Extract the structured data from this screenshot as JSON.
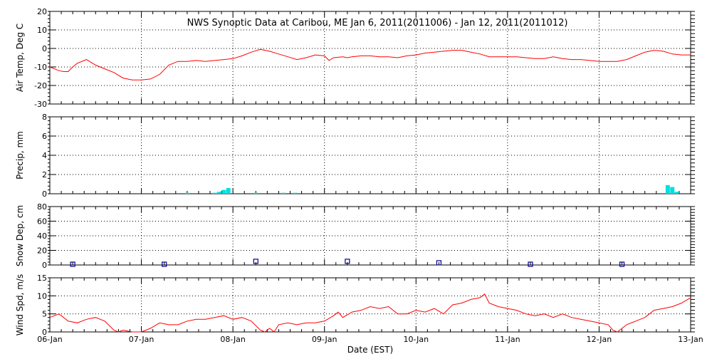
{
  "title": "NWS Synoptic Data at Caribou, ME   Jan  6, 2011(2011006) - Jan 12, 2011(2011012)",
  "x_label": "Date (EST)",
  "x_ticks": [
    "06-Jan",
    "07-Jan",
    "08-Jan",
    "09-Jan",
    "10-Jan",
    "11-Jan",
    "12-Jan",
    "13-Jan"
  ],
  "colors": {
    "temp": "#ff0000",
    "precip": "#00e0e0",
    "snow": "#00008b",
    "wind": "#ff0000",
    "grid": "#000000"
  },
  "chart_data": [
    {
      "type": "line",
      "panel": "air-temp",
      "ylabel": "Air Temp, Deg C",
      "ylim": [
        -30,
        20
      ],
      "yticks": [
        -30,
        -20,
        -10,
        0,
        10,
        20
      ],
      "x_unit": "days since Jan 6 00:00 EST",
      "x": [
        0,
        0.1,
        0.15,
        0.2,
        0.25,
        0.3,
        0.4,
        0.5,
        0.6,
        0.7,
        0.8,
        0.9,
        1.0,
        1.1,
        1.2,
        1.3,
        1.4,
        1.5,
        1.6,
        1.7,
        1.8,
        1.9,
        2.0,
        2.1,
        2.2,
        2.3,
        2.4,
        2.5,
        2.6,
        2.7,
        2.8,
        2.9,
        3.0,
        3.05,
        3.1,
        3.2,
        3.25,
        3.3,
        3.4,
        3.5,
        3.6,
        3.7,
        3.8,
        3.9,
        4.0,
        4.1,
        4.2,
        4.3,
        4.4,
        4.5,
        4.6,
        4.7,
        4.8,
        4.9,
        5.0,
        5.1,
        5.2,
        5.3,
        5.4,
        5.5,
        5.6,
        5.7,
        5.8,
        5.9,
        6.0,
        6.1,
        6.2,
        6.3,
        6.4,
        6.5,
        6.6,
        6.7,
        6.8,
        6.9,
        7.0
      ],
      "values": [
        -10,
        -12,
        -12.5,
        -12.5,
        -10,
        -8,
        -6,
        -9,
        -11,
        -13,
        -16,
        -17,
        -17,
        -16.5,
        -14,
        -9,
        -7,
        -7,
        -6.5,
        -7,
        -6.5,
        -6,
        -5.5,
        -4,
        -2,
        -0.5,
        -1.5,
        -3,
        -4.5,
        -6,
        -5,
        -3.5,
        -4,
        -6.5,
        -5,
        -4.5,
        -5,
        -4.5,
        -4,
        -4,
        -4.5,
        -4.5,
        -5,
        -4,
        -3.5,
        -2.5,
        -2,
        -1.5,
        -1,
        -1,
        -2,
        -3,
        -4.5,
        -4.5,
        -4.5,
        -4.5,
        -5,
        -5.5,
        -5.5,
        -4.5,
        -5.5,
        -6,
        -6,
        -6.5,
        -7,
        -7,
        -7,
        -6,
        -4,
        -2,
        -1,
        -1.5,
        -3,
        -3.5,
        -3.5
      ]
    },
    {
      "type": "bar",
      "panel": "precip",
      "ylabel": "Precip, mm",
      "ylim": [
        0,
        8
      ],
      "yticks": [
        0,
        2,
        4,
        6,
        8
      ],
      "x_unit": "days since Jan 6 00:00 EST",
      "x": [
        1.5,
        1.8,
        1.85,
        1.9,
        1.95,
        2.25,
        2.55,
        2.68,
        6.75,
        6.8,
        6.85
      ],
      "values": [
        0.1,
        0.1,
        0.2,
        0.4,
        0.6,
        0.1,
        0.1,
        0.1,
        0.9,
        0.7,
        0.2
      ]
    },
    {
      "type": "scatter",
      "panel": "snow-depth",
      "ylabel": "Snow Dep, cm",
      "ylim": [
        0,
        80
      ],
      "yticks": [
        0,
        20,
        40,
        60,
        80
      ],
      "x_unit": "days since Jan 6 00:00 EST",
      "x": [
        0.25,
        1.25,
        2.25,
        3.25,
        4.25,
        5.25,
        6.25
      ],
      "values": [
        1,
        1,
        5,
        5,
        3,
        1,
        1
      ]
    },
    {
      "type": "line",
      "panel": "wind-speed",
      "ylabel": "Wind Spd, m/s",
      "ylim": [
        0,
        15
      ],
      "yticks": [
        0,
        5,
        10,
        15
      ],
      "x_unit": "days since Jan 6 00:00 EST",
      "x": [
        0,
        0.1,
        0.2,
        0.3,
        0.4,
        0.5,
        0.6,
        0.7,
        0.75,
        0.8,
        0.9,
        1.0,
        1.1,
        1.2,
        1.3,
        1.4,
        1.5,
        1.6,
        1.7,
        1.8,
        1.9,
        2.0,
        2.1,
        2.2,
        2.3,
        2.35,
        2.4,
        2.45,
        2.5,
        2.6,
        2.7,
        2.8,
        2.9,
        3.0,
        3.1,
        3.15,
        3.2,
        3.3,
        3.4,
        3.5,
        3.6,
        3.7,
        3.8,
        3.9,
        4.0,
        4.1,
        4.2,
        4.3,
        4.4,
        4.5,
        4.6,
        4.7,
        4.75,
        4.8,
        4.9,
        5.0,
        5.1,
        5.2,
        5.3,
        5.4,
        5.5,
        5.6,
        5.7,
        5.8,
        5.9,
        6.0,
        6.1,
        6.15,
        6.2,
        6.3,
        6.4,
        6.5,
        6.6,
        6.7,
        6.8,
        6.9,
        7.0
      ],
      "values": [
        4,
        5,
        3,
        2.5,
        3.5,
        4,
        3,
        0.5,
        0,
        0.5,
        0,
        0,
        1,
        2.5,
        2,
        2,
        3,
        3.5,
        3.5,
        4,
        4.5,
        3.5,
        4,
        3,
        0.5,
        0,
        1,
        0,
        2,
        2.5,
        2,
        2.5,
        2.5,
        3,
        4.5,
        5.5,
        4,
        5.5,
        6,
        7,
        6.5,
        7,
        5,
        5,
        6,
        5.5,
        6.5,
        5,
        7.5,
        8,
        9,
        9.5,
        10.5,
        8,
        7,
        6.5,
        6,
        5,
        4.5,
        5,
        4,
        5,
        4,
        3.5,
        3,
        2.5,
        2,
        0.5,
        0,
        2,
        3,
        4,
        6,
        6.5,
        7,
        8,
        9.5
      ]
    }
  ]
}
